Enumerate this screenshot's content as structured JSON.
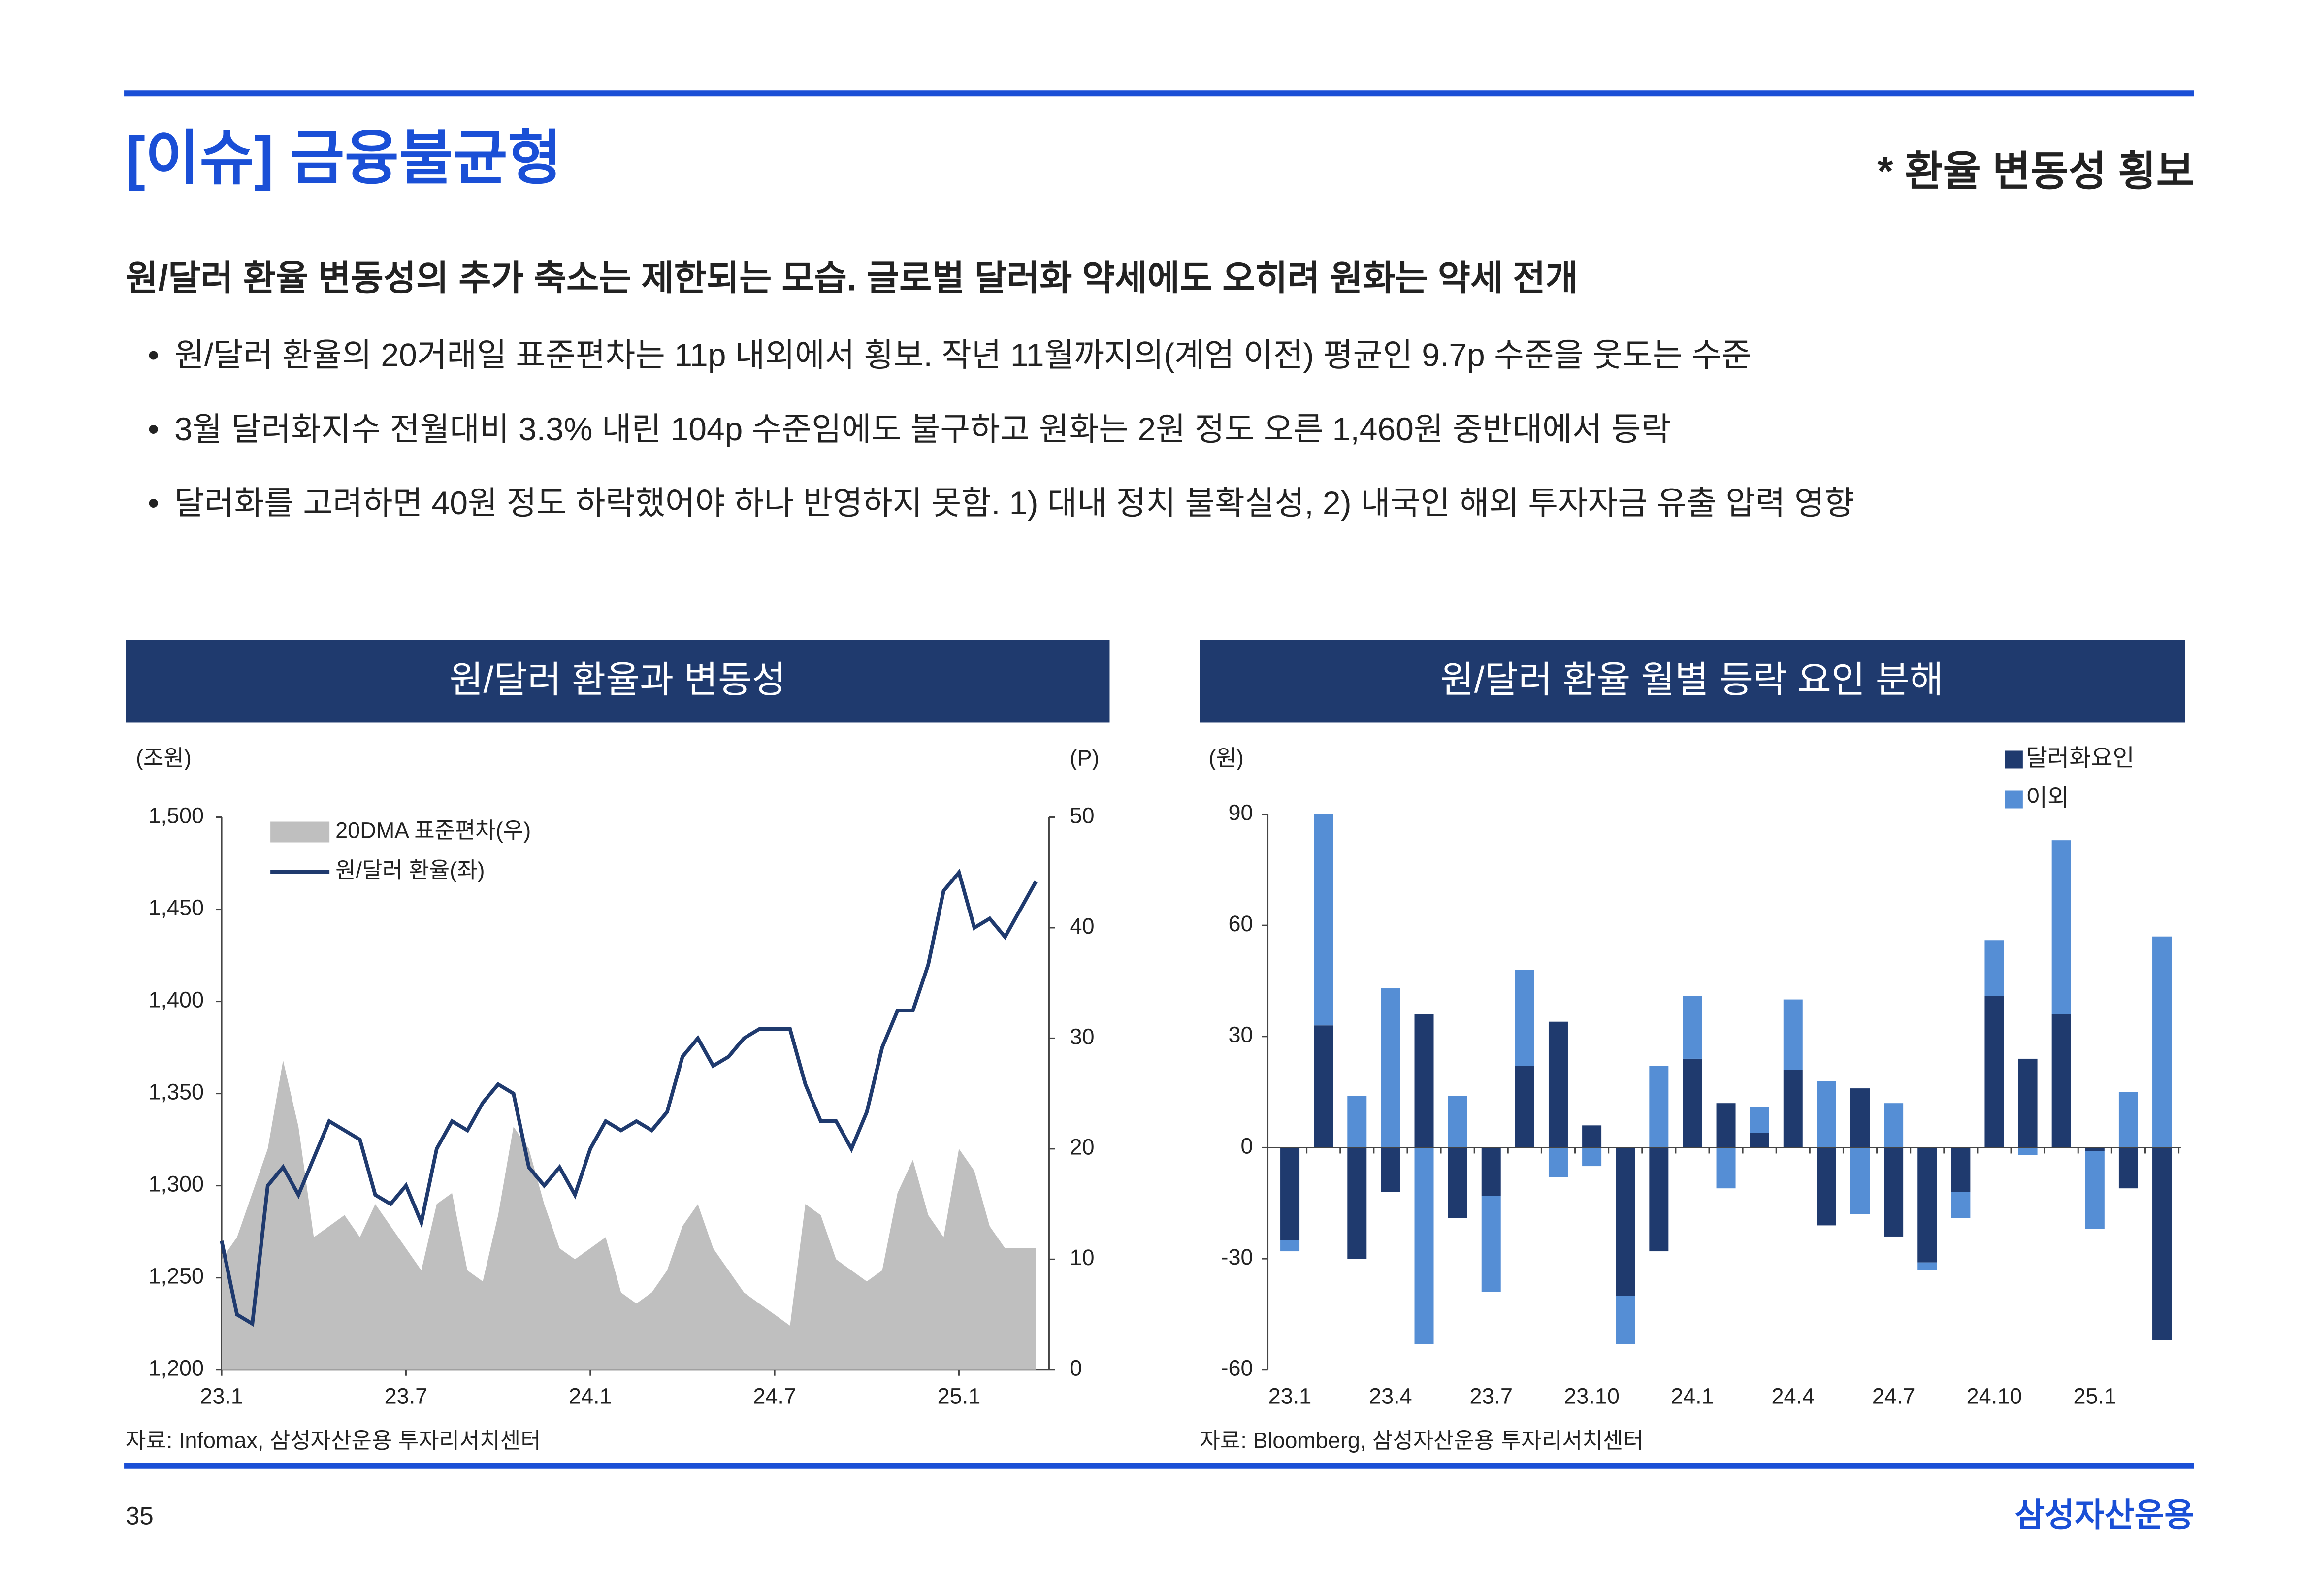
{
  "header": {
    "title": "[이슈] 금융불균형",
    "subtitle": "* 환율 변동성 횡보"
  },
  "headline": "원/달러 환율 변동성의 추가 축소는 제한되는 모습. 글로벌 달러화 약세에도 오히려 원화는 약세 전개",
  "bullets": [
    "원/달러 환율의 20거래일 표준편차는 11p 내외에서 횡보. 작년 11월까지의(계엄 이전) 평균인 9.7p 수준을 웃도는 수준",
    "3월 달러화지수 전월대비 3.3% 내린 104p 수준임에도 불구하고 원화는 2원 정도 오른 1,460원 중반대에서 등락",
    "달러화를 고려하면 40원 정도 하락했어야 하나 반영하지 못함. 1) 대내 정치 불확실성, 2) 내국인 해외 투자자금 유출 압력 영향"
  ],
  "footer": {
    "page": "35",
    "brand": "삼성자산운용"
  },
  "chart_data": [
    {
      "type": "line",
      "title": "원/달러 환율과 변동성",
      "y_label": "(조원)",
      "y2_label": "(P)",
      "source": "자료: Infomax, 삼성자산운용 투자리서치센터",
      "categories": [
        "23.1",
        null,
        null,
        null,
        null,
        null,
        null,
        null,
        null,
        null,
        null,
        null,
        "23.7",
        null,
        null,
        null,
        null,
        null,
        null,
        null,
        null,
        null,
        null,
        null,
        "24.1",
        null,
        null,
        null,
        null,
        null,
        null,
        null,
        null,
        null,
        null,
        null,
        "24.7",
        null,
        null,
        null,
        null,
        null,
        null,
        null,
        null,
        null,
        null,
        null,
        "25.1",
        null,
        null,
        null,
        null,
        null
      ],
      "series": [
        {
          "name": "20DMA 표준편차(우)",
          "type": "area",
          "axis": "y2",
          "color": "#bfbfbf",
          "values": [
            10,
            12,
            16,
            20,
            28,
            22,
            12,
            13,
            14,
            12,
            15,
            13,
            11,
            9,
            15,
            16,
            9,
            8,
            14,
            22,
            20,
            15,
            11,
            10,
            11,
            12,
            7,
            6,
            7,
            9,
            13,
            15,
            11,
            9,
            7,
            6,
            5,
            4,
            15,
            14,
            10,
            9,
            8,
            9,
            16,
            19,
            14,
            12,
            20,
            18,
            13,
            11,
            11,
            11
          ]
        },
        {
          "name": "원/달러 환율(좌)",
          "type": "line",
          "color": "#1f3a6e",
          "values": [
            1270,
            1230,
            1225,
            1300,
            1310,
            1295,
            1315,
            1335,
            1330,
            1325,
            1295,
            1290,
            1300,
            1280,
            1320,
            1335,
            1330,
            1345,
            1355,
            1350,
            1310,
            1300,
            1310,
            1295,
            1320,
            1335,
            1330,
            1335,
            1330,
            1340,
            1370,
            1380,
            1365,
            1370,
            1380,
            1385,
            1385,
            1385,
            1355,
            1335,
            1335,
            1320,
            1340,
            1375,
            1395,
            1395,
            1420,
            1460,
            1470,
            1440,
            1445,
            1435,
            1450,
            1465
          ]
        }
      ],
      "ylim": [
        1200,
        1500
      ],
      "yticks": [
        {
          "value": 1200,
          "label": "1,200"
        },
        {
          "value": 1250,
          "label": "1,250"
        },
        {
          "value": 1300,
          "label": "1,300"
        },
        {
          "value": 1350,
          "label": "1,350"
        },
        {
          "value": 1400,
          "label": "1,400"
        },
        {
          "value": 1450,
          "label": "1,450"
        },
        {
          "value": 1500,
          "label": "1,500"
        }
      ],
      "y2lim": [
        0,
        50
      ],
      "y2ticks": [
        0,
        10,
        20,
        30,
        40,
        50
      ],
      "legend": "top-left"
    },
    {
      "type": "bar",
      "stacked": true,
      "title": "원/달러 환율 월별 등락 요인 분해",
      "y_label": "(원)",
      "source": "자료: Bloomberg, 삼성자산운용 투자리서치센터",
      "categories": [
        "23.1",
        null,
        null,
        "23.4",
        null,
        null,
        "23.7",
        null,
        null,
        "23.10",
        null,
        null,
        "24.1",
        null,
        null,
        "24.4",
        null,
        null,
        "24.7",
        null,
        null,
        "24.10",
        null,
        null,
        "25.1",
        null,
        null
      ],
      "series": [
        {
          "name": "달러화요인",
          "color": "#1f3a6e",
          "values": [
            -25,
            33,
            -30,
            -12,
            36,
            -19,
            -13,
            22,
            34,
            6,
            -40,
            -28,
            24,
            12,
            4,
            21,
            -21,
            16,
            -24,
            -31,
            -12,
            41,
            24,
            36,
            -1,
            -11,
            -52
          ]
        },
        {
          "name": "이외",
          "color": "#558ed5",
          "values": [
            -3,
            57,
            14,
            43,
            -53,
            14,
            -26,
            26,
            -8,
            -5,
            -13,
            22,
            17,
            -11,
            7,
            19,
            18,
            -18,
            12,
            -2,
            -7,
            15,
            -2,
            47,
            -21,
            15,
            57
          ]
        }
      ],
      "ylim": [
        -60,
        90
      ],
      "yticks": [
        -60,
        -30,
        0,
        30,
        60,
        90
      ],
      "legend": "top-right"
    }
  ]
}
